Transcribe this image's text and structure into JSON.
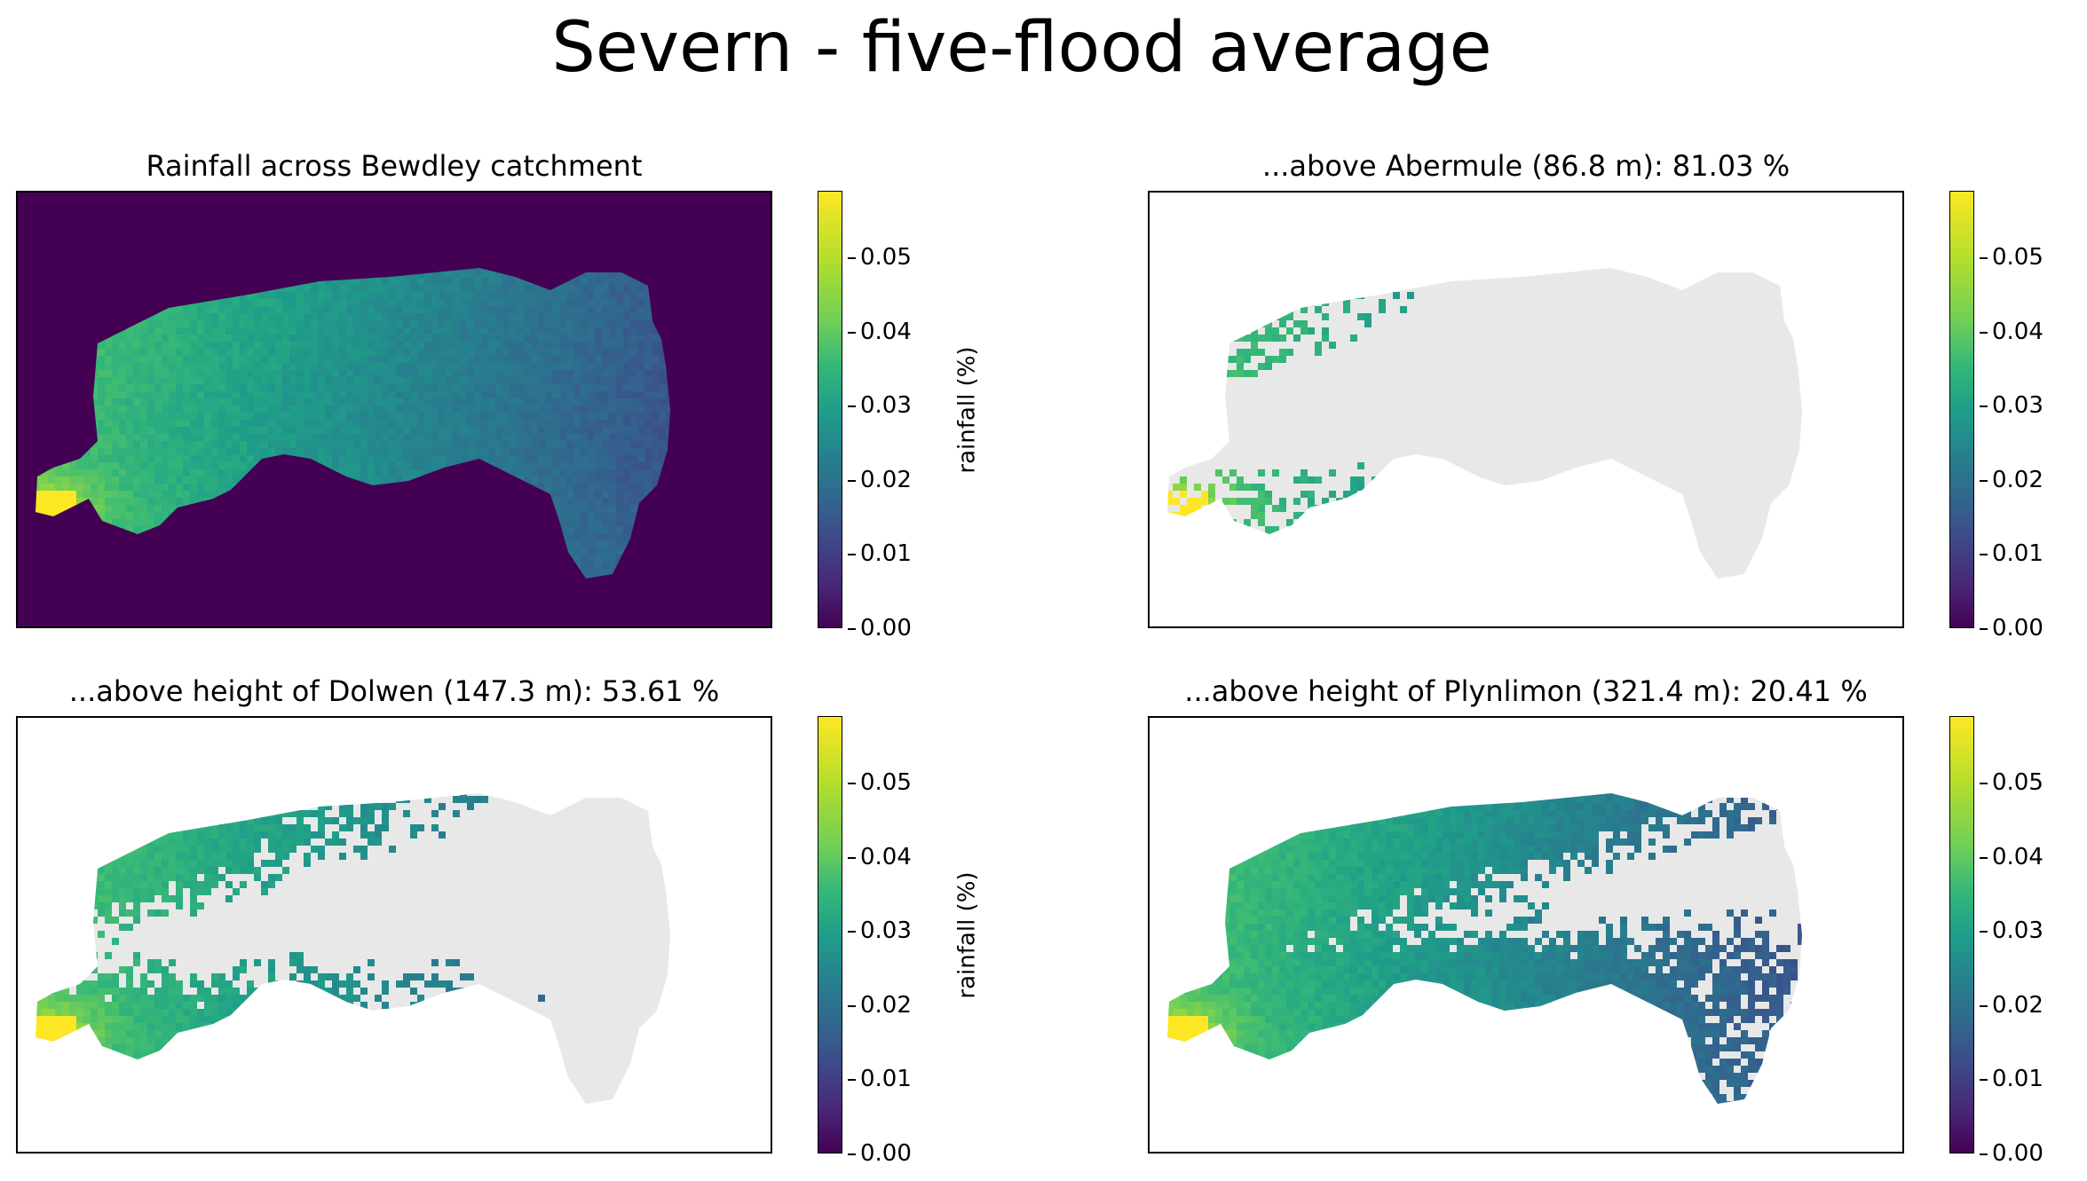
{
  "figure_title": "Severn - five-flood average",
  "chart_data": [
    {
      "type": "heatmap",
      "title": "Rainfall across Bewdley catchment",
      "colorbar": {
        "label": "rainfall (%)",
        "ticks": [
          "0.00",
          "0.01",
          "0.02",
          "0.03",
          "0.04",
          "0.05"
        ],
        "vmin": 0.0,
        "vmax": 0.059,
        "colormap": "viridis"
      },
      "mask_color": "none",
      "background": "#440154",
      "grid": false
    },
    {
      "type": "heatmap",
      "title": "...above Abermule (86.8 m): 81.03 %",
      "colorbar": {
        "label": "rainfall (%)",
        "ticks": [
          "0.00",
          "0.01",
          "0.02",
          "0.03",
          "0.04",
          "0.05"
        ],
        "vmin": 0.0,
        "vmax": 0.059,
        "colormap": "viridis"
      },
      "mask_color": "#e8e8e8",
      "threshold_m": 86.8,
      "area_fraction_percent": 81.03,
      "grid": false
    },
    {
      "type": "heatmap",
      "title": "...above height of Dolwen (147.3 m): 53.61 %",
      "colorbar": {
        "label": "rainfall (%)",
        "ticks": [
          "0.00",
          "0.01",
          "0.02",
          "0.03",
          "0.04",
          "0.05"
        ],
        "vmin": 0.0,
        "vmax": 0.059,
        "colormap": "viridis"
      },
      "mask_color": "#e8e8e8",
      "threshold_m": 147.3,
      "area_fraction_percent": 53.61,
      "grid": false
    },
    {
      "type": "heatmap",
      "title": "...above height of Plynlimon (321.4 m): 20.41 %",
      "colorbar": {
        "label": "rainfall (%)",
        "ticks": [
          "0.00",
          "0.01",
          "0.02",
          "0.03",
          "0.04",
          "0.05"
        ],
        "vmin": 0.0,
        "vmax": 0.059,
        "colormap": "viridis"
      },
      "mask_color": "#e8e8e8",
      "threshold_m": 321.4,
      "area_fraction_percent": 20.41,
      "grid": false
    }
  ]
}
